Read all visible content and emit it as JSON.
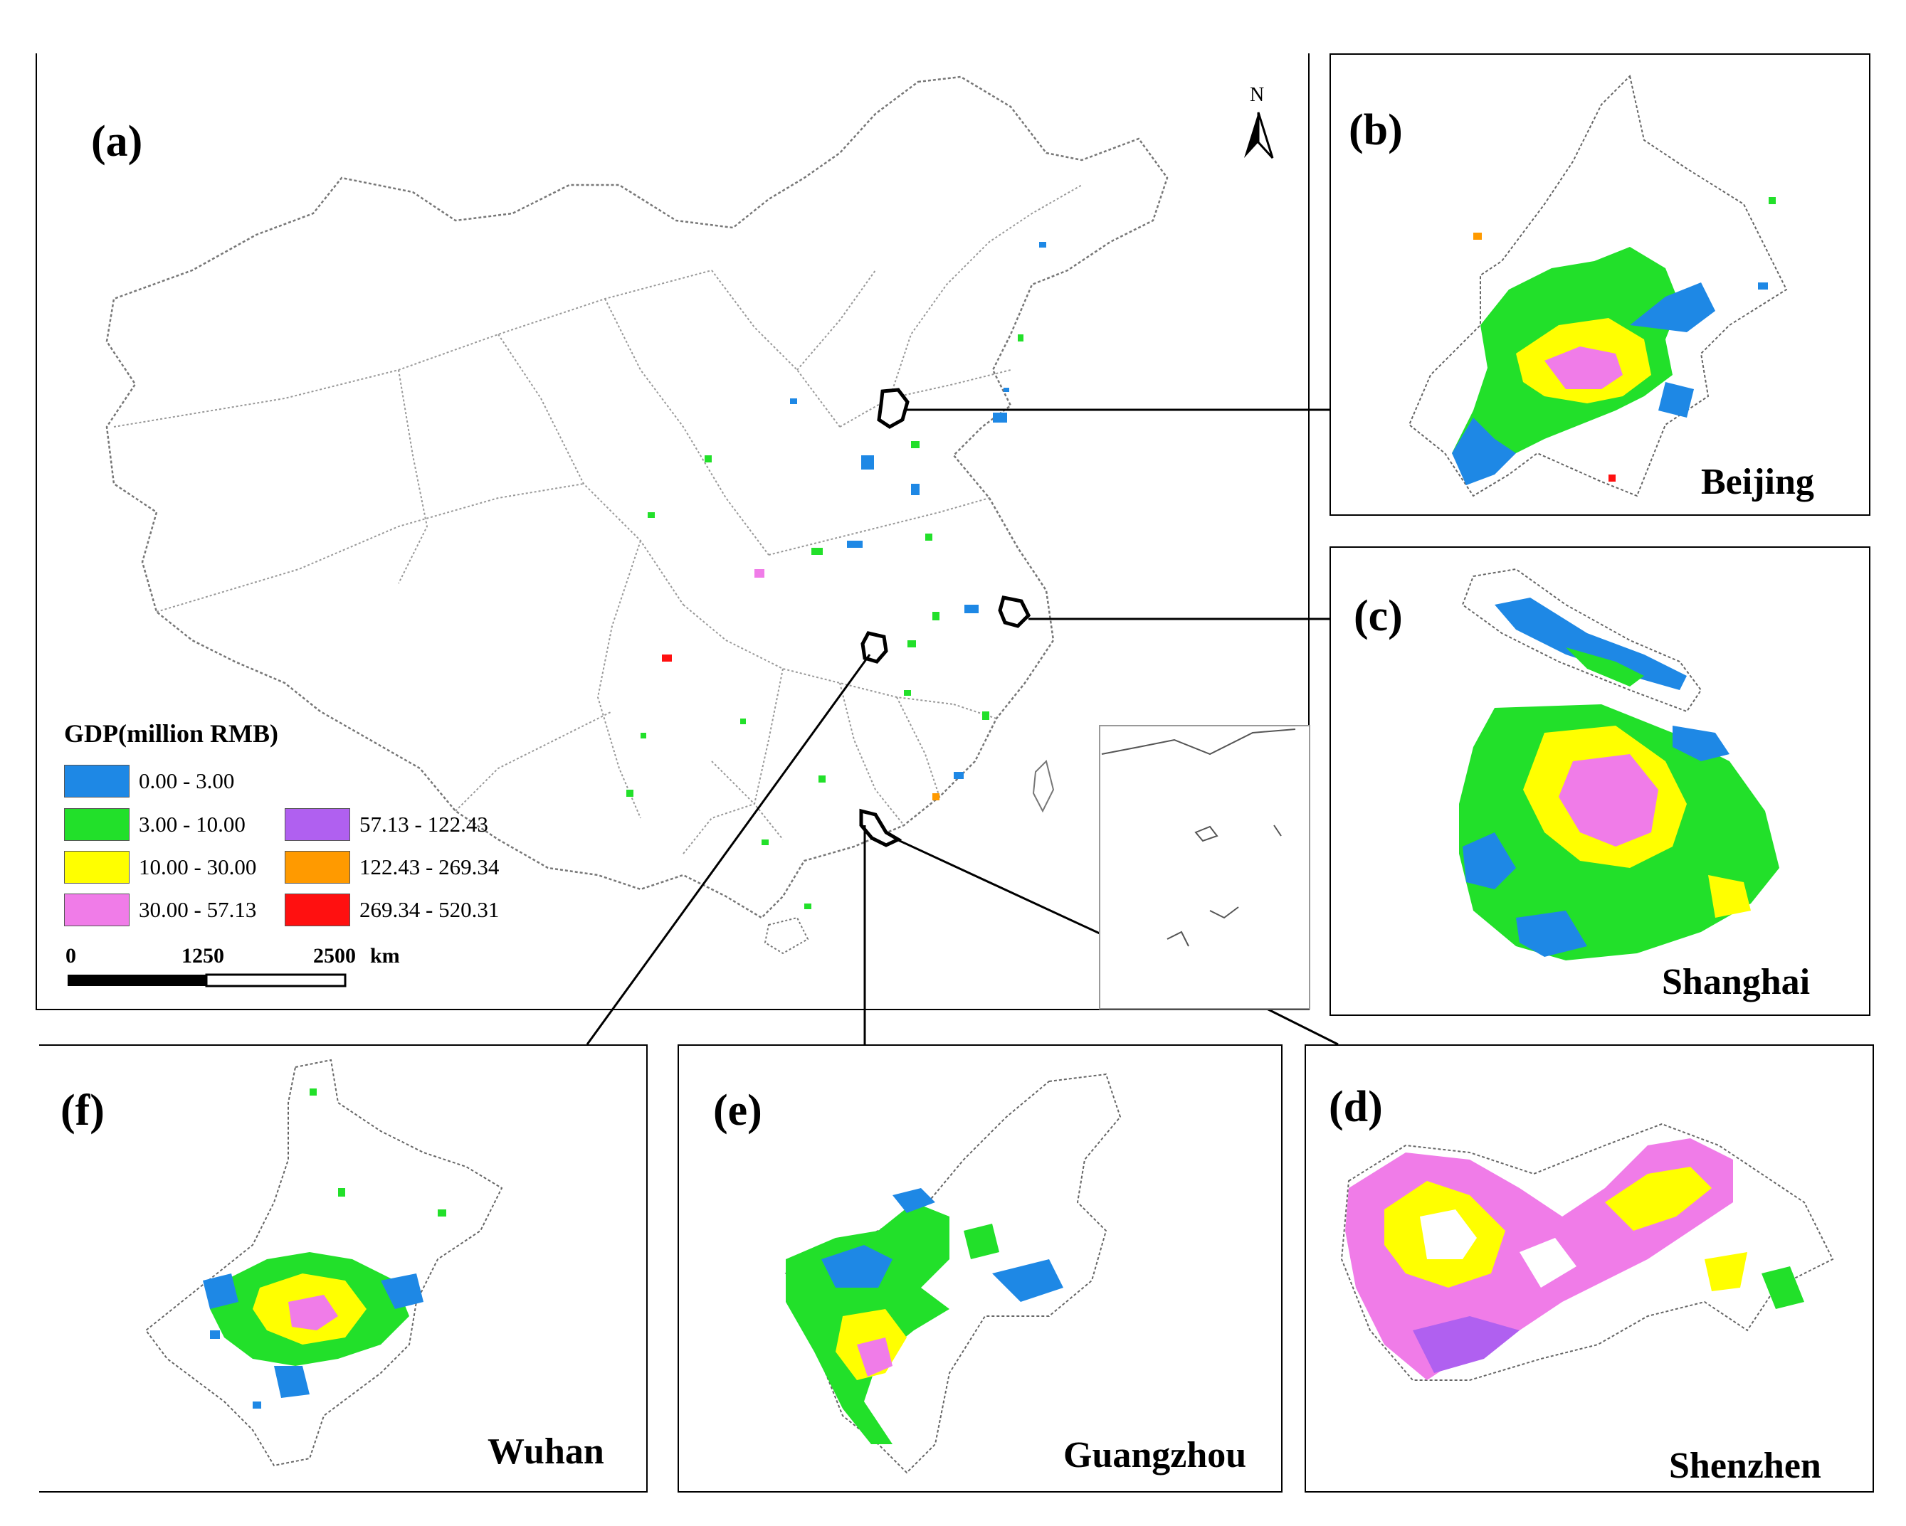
{
  "panels": {
    "a": {
      "label": "(a)"
    },
    "b": {
      "label": "(b)",
      "city": "Beijing"
    },
    "c": {
      "label": "(c)",
      "city": "Shanghai"
    },
    "d": {
      "label": "(d)",
      "city": "Shenzhen"
    },
    "e": {
      "label": "(e)",
      "city": "Guangzhou"
    },
    "f": {
      "label": "(f)",
      "city": "Wuhan"
    }
  },
  "north_arrow": {
    "label": "N"
  },
  "legend": {
    "title": "GDP(million RMB)",
    "classes": [
      {
        "range": "0.00 - 3.00",
        "color": "#1e88e5"
      },
      {
        "range": "3.00 - 10.00",
        "color": "#22e02a"
      },
      {
        "range": "10.00 - 30.00",
        "color": "#ffff00"
      },
      {
        "range": "30.00 - 57.13",
        "color": "#f07ce8"
      },
      {
        "range": "57.13 - 122.43",
        "color": "#b060f0"
      },
      {
        "range": "122.43 - 269.34",
        "color": "#ff9a00"
      },
      {
        "range": "269.34 - 520.31",
        "color": "#ff1010"
      }
    ]
  },
  "scale_bar": {
    "tick0": "0",
    "tick1": "1250",
    "tick2": "2500",
    "unit": "km"
  }
}
